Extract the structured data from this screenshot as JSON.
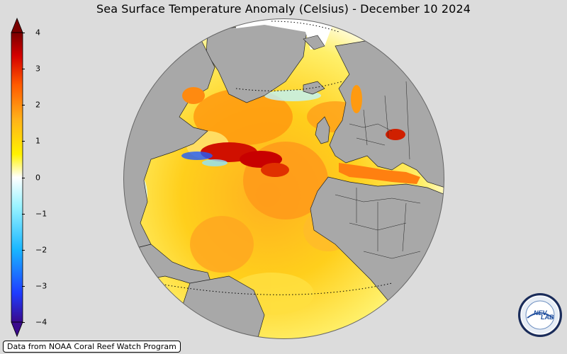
{
  "title": "Sea Surface Temperature Anomaly (Celsius) - December 10 2024",
  "colorbar": {
    "ticks": [
      "4",
      "3",
      "2",
      "1",
      "0",
      "−1",
      "−2",
      "−3",
      "−4"
    ],
    "min": -4,
    "max": 4,
    "colors": [
      "#3a0a8c",
      "#1f3cff",
      "#19b6ff",
      "#9af3ff",
      "#ffffff",
      "#fff200",
      "#ffb21a",
      "#ff5a00",
      "#d40000",
      "#7a0000"
    ]
  },
  "map": {
    "land_color": "#a8a8a8",
    "ocean_warm_color": "#ffd21c",
    "ocean_hot_color": "#ff7a00",
    "extreme_color": "#c80000",
    "cool_color": "#8fe4ff"
  },
  "credit": "Data from NOAA Coral Reef Watch Program",
  "logo": {
    "text_top": "NEV",
    "text_bottom": "LAB"
  }
}
